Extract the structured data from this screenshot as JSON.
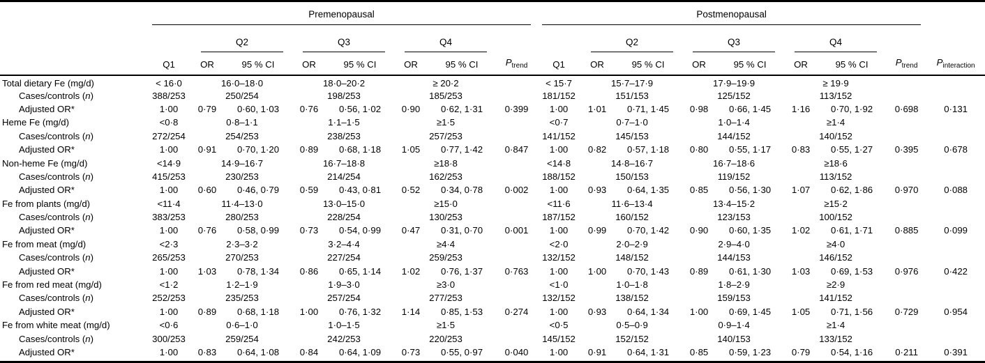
{
  "table": {
    "groups": {
      "pre": "Premenopausal",
      "post": "Postmenopausal"
    },
    "quartiles": [
      "Q2",
      "Q3",
      "Q4"
    ],
    "sub": {
      "q1": "Q1",
      "or": "OR",
      "ci": "95 % CI",
      "p": "P",
      "trend": "trend",
      "interaction": "interaction"
    },
    "row_labels": {
      "cases": "Cases/controls (n)",
      "adjusted_or": "Adjusted OR*"
    },
    "blocks": [
      {
        "label": "Total dietary Fe (mg/d)",
        "pre": {
          "ranges": [
            "< 16·0",
            "16·0–18·0",
            "18·0–20·2",
            "≥ 20·2"
          ],
          "cases": [
            "388/253",
            "250/254",
            "198/253",
            "185/253"
          ],
          "or_q1": "1·00",
          "ors": [
            [
              "0·79",
              "0·60, 1·03"
            ],
            [
              "0·76",
              "0·56, 1·02"
            ],
            [
              "0·90",
              "0·62, 1·31"
            ]
          ],
          "p_trend": "0·399"
        },
        "post": {
          "ranges": [
            "< 15·7",
            "15·7–17·9",
            "17·9–19·9",
            "≥ 19·9"
          ],
          "cases": [
            "181/152",
            "151/153",
            "125/152",
            "113/152"
          ],
          "or_q1": "1·00",
          "ors": [
            [
              "1·01",
              "0·71, 1·45"
            ],
            [
              "0·98",
              "0·66, 1·45"
            ],
            [
              "1·16",
              "0·70, 1·92"
            ]
          ],
          "p_trend": "0·698"
        },
        "p_interaction": "0·131"
      },
      {
        "label": "Heme Fe (mg/d)",
        "pre": {
          "ranges": [
            "<0·8",
            "0·8–1·1",
            "1·1–1·5",
            "≥1·5"
          ],
          "cases": [
            "272/254",
            "254/253",
            "238/253",
            "257/253"
          ],
          "or_q1": "1·00",
          "ors": [
            [
              "0·91",
              "0·70, 1·20"
            ],
            [
              "0·89",
              "0·68, 1·18"
            ],
            [
              "1·05",
              "0·77, 1·42"
            ]
          ],
          "p_trend": "0·847"
        },
        "post": {
          "ranges": [
            "<0·7",
            "0·7–1·0",
            "1·0–1·4",
            "≥1·4"
          ],
          "cases": [
            "141/152",
            "145/153",
            "144/152",
            "140/152"
          ],
          "or_q1": "1·00",
          "ors": [
            [
              "0·82",
              "0·57, 1·18"
            ],
            [
              "0·80",
              "0·55, 1·17"
            ],
            [
              "0·83",
              "0·55, 1·27"
            ]
          ],
          "p_trend": "0·395"
        },
        "p_interaction": "0·678"
      },
      {
        "label": "Non-heme Fe (mg/d)",
        "pre": {
          "ranges": [
            "<14·9",
            "14·9–16·7",
            "16·7–18·8",
            "≥18·8"
          ],
          "cases": [
            "415/253",
            "230/253",
            "214/254",
            "162/253"
          ],
          "or_q1": "1·00",
          "ors": [
            [
              "0·60",
              "0·46, 0·79"
            ],
            [
              "0·59",
              "0·43, 0·81"
            ],
            [
              "0·52",
              "0·34, 0·78"
            ]
          ],
          "p_trend": "0·002"
        },
        "post": {
          "ranges": [
            "<14·8",
            "14·8–16·7",
            "16·7–18·6",
            "≥18·6"
          ],
          "cases": [
            "188/152",
            "150/153",
            "119/152",
            "113/152"
          ],
          "or_q1": "1·00",
          "ors": [
            [
              "0·93",
              "0·64, 1·35"
            ],
            [
              "0·85",
              "0·56, 1·30"
            ],
            [
              "1·07",
              "0·62, 1·86"
            ]
          ],
          "p_trend": "0·970"
        },
        "p_interaction": "0·088"
      },
      {
        "label": "Fe from plants (mg/d)",
        "pre": {
          "ranges": [
            "<11·4",
            "11·4–13·0",
            "13·0–15·0",
            "≥15·0"
          ],
          "cases": [
            "383/253",
            "280/253",
            "228/254",
            "130/253"
          ],
          "or_q1": "1·00",
          "ors": [
            [
              "0·76",
              "0·58, 0·99"
            ],
            [
              "0·73",
              "0·54, 0·99"
            ],
            [
              "0·47",
              "0·31, 0·70"
            ]
          ],
          "p_trend": "0·001"
        },
        "post": {
          "ranges": [
            "<11·6",
            "11·6–13·4",
            "13·4–15·2",
            "≥15·2"
          ],
          "cases": [
            "187/152",
            "160/152",
            "123/153",
            "100/152"
          ],
          "or_q1": "1·00",
          "ors": [
            [
              "0·99",
              "0·70, 1·42"
            ],
            [
              "0·90",
              "0·60, 1·35"
            ],
            [
              "1·02",
              "0·61, 1·71"
            ]
          ],
          "p_trend": "0·885"
        },
        "p_interaction": "0·099"
      },
      {
        "label": "Fe from meat (mg/d)",
        "pre": {
          "ranges": [
            "<2·3",
            "2·3–3·2",
            "3·2–4·4",
            "≥4·4"
          ],
          "cases": [
            "265/253",
            "270/253",
            "227/254",
            "259/253"
          ],
          "or_q1": "1·00",
          "ors": [
            [
              "1·03",
              "0·78, 1·34"
            ],
            [
              "0·86",
              "0·65, 1·14"
            ],
            [
              "1·02",
              "0·76, 1·37"
            ]
          ],
          "p_trend": "0·763"
        },
        "post": {
          "ranges": [
            "<2·0",
            "2·0–2·9",
            "2·9–4·0",
            "≥4·0"
          ],
          "cases": [
            "132/152",
            "148/152",
            "144/153",
            "146/152"
          ],
          "or_q1": "1·00",
          "ors": [
            [
              "1·00",
              "0·70, 1·43"
            ],
            [
              "0·89",
              "0·61, 1·30"
            ],
            [
              "1·03",
              "0·69, 1·53"
            ]
          ],
          "p_trend": "0·976"
        },
        "p_interaction": "0·422"
      },
      {
        "label": "Fe from red meat (mg/d)",
        "pre": {
          "ranges": [
            "<1·2",
            "1·2–1·9",
            "1·9–3·0",
            "≥3·0"
          ],
          "cases": [
            "252/253",
            "235/253",
            "257/254",
            "277/253"
          ],
          "or_q1": "1·00",
          "ors": [
            [
              "0·89",
              "0·68, 1·18"
            ],
            [
              "1·00",
              "0·76, 1·32"
            ],
            [
              "1·14",
              "0·85, 1·53"
            ]
          ],
          "p_trend": "0·274"
        },
        "post": {
          "ranges": [
            "<1·0",
            "1·0–1·8",
            "1·8–2·9",
            "≥2·9"
          ],
          "cases": [
            "132/152",
            "138/152",
            "159/153",
            "141/152"
          ],
          "or_q1": "1·00",
          "ors": [
            [
              "0·93",
              "0·64, 1·34"
            ],
            [
              "1·00",
              "0·69, 1·45"
            ],
            [
              "1·05",
              "0·71, 1·56"
            ]
          ],
          "p_trend": "0·729"
        },
        "p_interaction": "0·954"
      },
      {
        "label": "Fe from white meat (mg/d)",
        "pre": {
          "ranges": [
            "<0·6",
            "0·6–1·0",
            "1·0–1·5",
            "≥1·5"
          ],
          "cases": [
            "300/253",
            "259/254",
            "242/253",
            "220/253"
          ],
          "or_q1": "1·00",
          "ors": [
            [
              "0·83",
              "0·64, 1·08"
            ],
            [
              "0·84",
              "0·64, 1·09"
            ],
            [
              "0·73",
              "0·55, 0·97"
            ]
          ],
          "p_trend": "0·040"
        },
        "post": {
          "ranges": [
            "<0·5",
            "0·5–0·9",
            "0·9–1·4",
            "≥1·4"
          ],
          "cases": [
            "145/152",
            "152/152",
            "140/153",
            "133/152"
          ],
          "or_q1": "1·00",
          "ors": [
            [
              "0·91",
              "0·64, 1·31"
            ],
            [
              "0·85",
              "0·59, 1·23"
            ],
            [
              "0·79",
              "0·54, 1·16"
            ]
          ],
          "p_trend": "0·211"
        },
        "p_interaction": "0·391"
      }
    ]
  }
}
